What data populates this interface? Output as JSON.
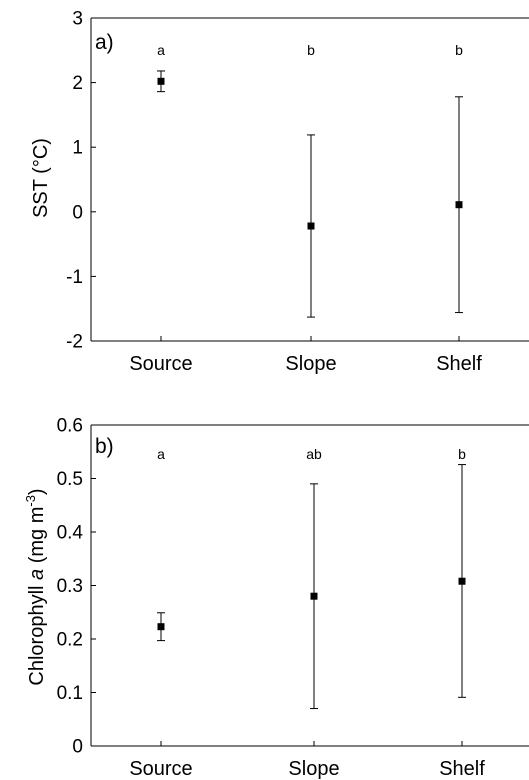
{
  "chart_data": [
    {
      "type": "scatter",
      "panel_label": "a)",
      "categories": [
        "Source",
        "Slope",
        "Shelf"
      ],
      "means": [
        2.02,
        -0.22,
        0.11
      ],
      "lower": [
        1.86,
        -1.63,
        -1.56
      ],
      "upper": [
        2.18,
        1.19,
        1.78
      ],
      "significance": [
        "a",
        "b",
        "b"
      ],
      "ylim": [
        -2,
        3
      ],
      "yticks": [
        "3",
        "2",
        "1",
        "0",
        "-1",
        "-2"
      ],
      "ylabel": "SST (°C)",
      "grid": false
    },
    {
      "type": "scatter",
      "panel_label": "b)",
      "categories": [
        "Source",
        "Slope",
        "Shelf"
      ],
      "means": [
        0.223,
        0.28,
        0.308
      ],
      "lower": [
        0.197,
        0.07,
        0.091
      ],
      "upper": [
        0.249,
        0.49,
        0.526
      ],
      "significance": [
        "a",
        "ab",
        "b"
      ],
      "ylim": [
        0,
        0.6
      ],
      "yticks": [
        "0.6",
        "0.5",
        "0.4",
        "0.3",
        "0.2",
        "0.1",
        "0"
      ],
      "ylabel_main": "Chlorophyll ",
      "ylabel_italic": "a",
      "ylabel_unit": " (mg m",
      "ylabel_sup": "-3",
      "ylabel_close": ")",
      "grid": false
    }
  ]
}
